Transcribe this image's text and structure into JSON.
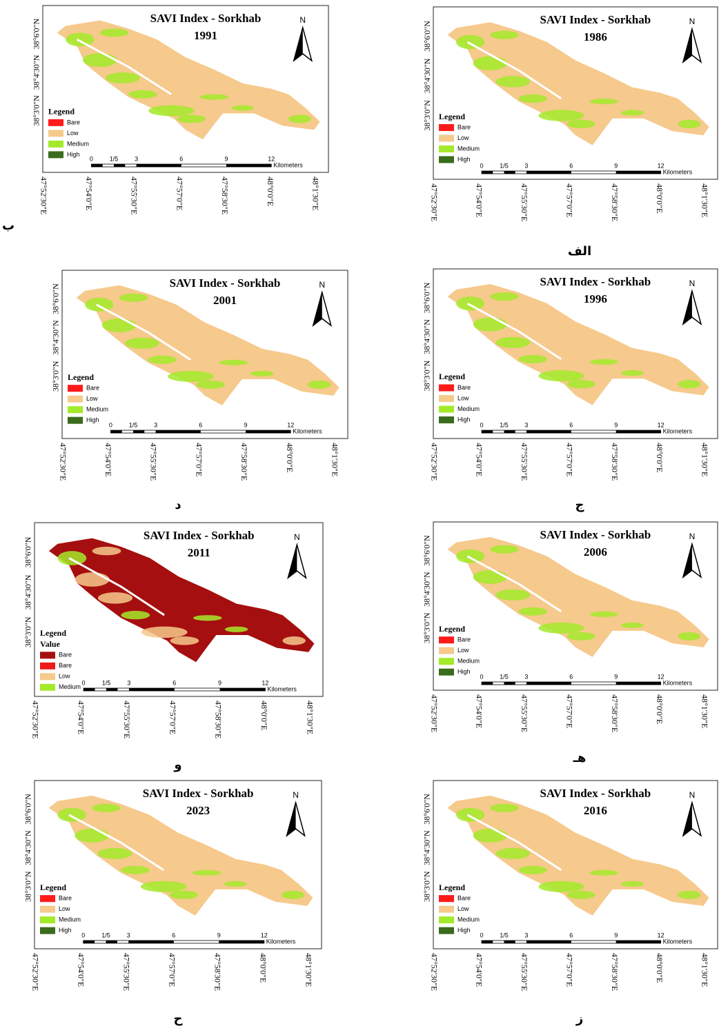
{
  "north": "N",
  "lat_labels": [
    "38°6'0\"N",
    "38°4'30\"N",
    "38°3'0\"N"
  ],
  "lon_labels": [
    "47°52'30\"E",
    "47°54'0\"E",
    "47°55'30\"E",
    "47°57'0\"E",
    "47°58'30\"E",
    "48°0'0\"E",
    "48°1'30\"E"
  ],
  "scale_ticks": [
    "0",
    "1/5",
    "3",
    "6",
    "9",
    "12"
  ],
  "scale_unit": "Kilometers",
  "maps": [
    {
      "title": "SAVI Index - Sorkhab",
      "year": "1986",
      "panel_label": "الف",
      "legend_title": "Legend",
      "legend": [
        {
          "name": "Bare",
          "color": "#ff1a1a"
        },
        {
          "name": "Low",
          "color": "#f6c98c"
        },
        {
          "name": "Medium",
          "color": "#a3ea2a"
        },
        {
          "name": "High",
          "color": "#3b6b1c"
        }
      ]
    },
    {
      "title": "SAVI Index - Sorkhab",
      "year": "1991",
      "panel_label": "ب",
      "legend_title": "Legend",
      "legend": [
        {
          "name": "Bare",
          "color": "#ff1a1a"
        },
        {
          "name": "Low",
          "color": "#f6c98c"
        },
        {
          "name": "Medium",
          "color": "#a3ea2a"
        },
        {
          "name": "High",
          "color": "#3b6b1c"
        }
      ]
    },
    {
      "title": "SAVI Index - Sorkhab",
      "year": "1996",
      "panel_label": "ج",
      "legend_title": "Legend",
      "legend": [
        {
          "name": "Bare",
          "color": "#ff1a1a"
        },
        {
          "name": "Low",
          "color": "#f6c98c"
        },
        {
          "name": "Medium",
          "color": "#a3ea2a"
        },
        {
          "name": "High",
          "color": "#3b6b1c"
        }
      ]
    },
    {
      "title": "SAVI Index - Sorkhab",
      "year": "2001",
      "panel_label": "د",
      "legend_title": "Legend",
      "legend": [
        {
          "name": "Bare",
          "color": "#ff1a1a"
        },
        {
          "name": "Low",
          "color": "#f6c98c"
        },
        {
          "name": "Medium",
          "color": "#a3ea2a"
        },
        {
          "name": "High",
          "color": "#3b6b1c"
        }
      ]
    },
    {
      "title": "SAVI Index - Sorkhab",
      "year": "2006",
      "panel_label": "هـ",
      "legend_title": "Legend",
      "legend": [
        {
          "name": "Bare",
          "color": "#ff1a1a"
        },
        {
          "name": "Low",
          "color": "#f6c98c"
        },
        {
          "name": "Medium",
          "color": "#a3ea2a"
        },
        {
          "name": "High",
          "color": "#3b6b1c"
        }
      ]
    },
    {
      "title": "SAVI Index - Sorkhab",
      "year": "2011",
      "panel_label": "و",
      "legend_title": "Legend",
      "legend_subtitle": "Value",
      "legend": [
        {
          "name": "Bare",
          "color": "#a50f0f"
        },
        {
          "name": "Bare",
          "color": "#ee1a1a"
        },
        {
          "name": "Low",
          "color": "#f6c98c"
        },
        {
          "name": "Medium",
          "color": "#a3ea2a"
        }
      ]
    },
    {
      "title": "SAVI Index - Sorkhab",
      "year": "2016",
      "panel_label": "ز",
      "legend_title": "Legend",
      "legend": [
        {
          "name": "Bare",
          "color": "#ff1a1a"
        },
        {
          "name": "Low",
          "color": "#f6c98c"
        },
        {
          "name": "Medium",
          "color": "#a3ea2a"
        },
        {
          "name": "High",
          "color": "#3b6b1c"
        }
      ]
    },
    {
      "title": "SAVI Index - Sorkhab",
      "year": "2023",
      "panel_label": "ح",
      "legend_title": "Legend",
      "legend": [
        {
          "name": "Bare",
          "color": "#ff1a1a"
        },
        {
          "name": "Low",
          "color": "#f6c98c"
        },
        {
          "name": "Medium",
          "color": "#a3ea2a"
        },
        {
          "name": "High",
          "color": "#3b6b1c"
        }
      ]
    }
  ]
}
